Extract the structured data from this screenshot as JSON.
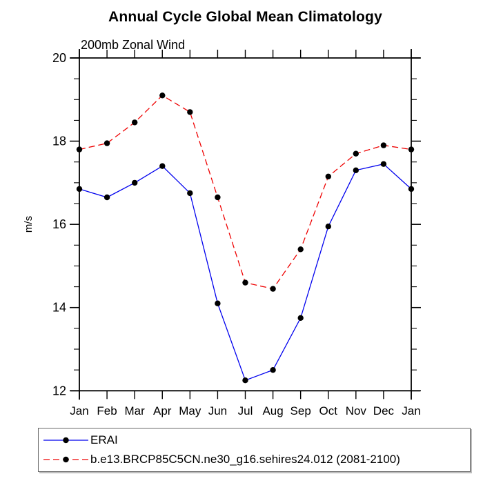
{
  "title": "Annual Cycle Global Mean Climatology",
  "subtitle": "200mb Zonal Wind",
  "chart_data": {
    "type": "line",
    "categories": [
      "Jan",
      "Feb",
      "Mar",
      "Apr",
      "May",
      "Jun",
      "Jul",
      "Aug",
      "Sep",
      "Oct",
      "Nov",
      "Dec",
      "Jan"
    ],
    "series": [
      {
        "name": "ERAI",
        "color": "#0000ee",
        "line_style": "solid",
        "marker": "filled-circle",
        "values": [
          16.85,
          16.65,
          17.0,
          17.4,
          16.75,
          14.1,
          12.25,
          12.5,
          13.75,
          15.95,
          17.3,
          17.45,
          16.85
        ]
      },
      {
        "name": "b.e13.BRCP85C5CN.ne30_g16.sehires24.012 (2081-2100)",
        "color": "#ee0000",
        "line_style": "dashed",
        "marker": "filled-circle",
        "values": [
          17.8,
          17.95,
          18.45,
          19.1,
          18.7,
          16.65,
          14.6,
          14.45,
          15.4,
          17.15,
          17.7,
          17.9,
          17.8
        ]
      }
    ],
    "xlabel": "",
    "ylabel": "m/s",
    "ylim": [
      12,
      20
    ],
    "yticks": [
      12,
      14,
      16,
      18,
      20
    ],
    "minor_tick_interval": 0.5,
    "grid": false,
    "marker_color": "#000000",
    "axis_color": "#000000",
    "legend_position": "bottom-left-box"
  }
}
